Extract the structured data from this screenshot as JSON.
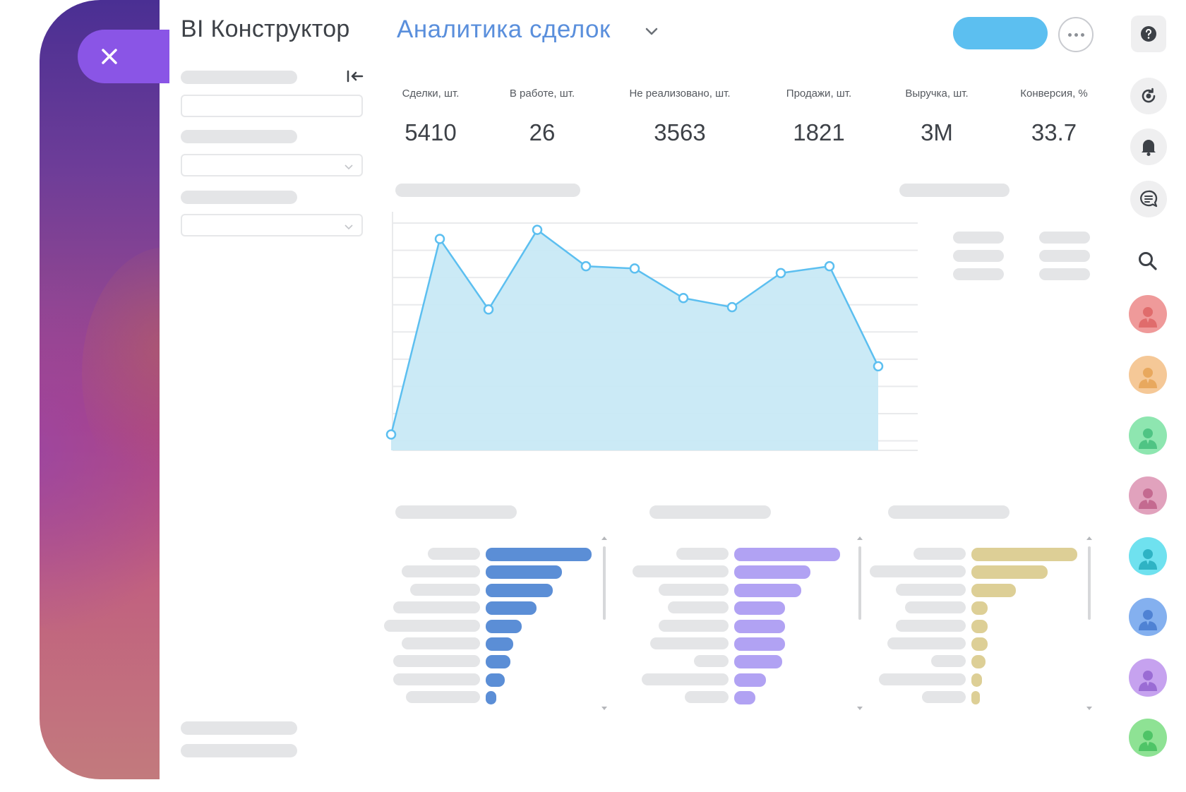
{
  "header": {
    "app_title": "BI Конструктор",
    "report_title": "Аналитика сделок"
  },
  "colors": {
    "accent_blue": "#5cbff0",
    "title_blue": "#5a8fdc",
    "close_purple": "#8a55e6",
    "chart_fill": "#c8e9f6",
    "chart_line": "#5cbff0",
    "funnel_blue": "#5b8ed6",
    "funnel_purple": "#b1a2f3",
    "funnel_gold": "#ddcf96"
  },
  "kpis": [
    {
      "label": "Сделки, шт.",
      "value": "5410"
    },
    {
      "label": "В работе, шт.",
      "value": "26"
    },
    {
      "label": "Не реализовано, шт.",
      "value": "3563"
    },
    {
      "label": "Продажи, шт.",
      "value": "1821"
    },
    {
      "label": "Выручка, шт.",
      "value": "3M"
    },
    {
      "label": "Конверсия, %",
      "value": "33.7"
    }
  ],
  "chart_data": {
    "type": "area",
    "x": [
      1,
      2,
      3,
      4,
      5,
      6,
      7,
      8,
      9,
      10,
      11
    ],
    "values": [
      0.07,
      0.93,
      0.62,
      0.97,
      0.81,
      0.8,
      0.67,
      0.63,
      0.78,
      0.81,
      0.37
    ],
    "ylim": [
      0,
      1
    ],
    "grid": true,
    "title": "",
    "xlabel": "",
    "ylabel": ""
  },
  "funnels": [
    {
      "color": "funnel_blue",
      "values": [
        1.0,
        0.72,
        0.63,
        0.48,
        0.34,
        0.26,
        0.23,
        0.18,
        0.1
      ],
      "labels": [
        0.6,
        0.9,
        0.8,
        1.0,
        1.1,
        0.9,
        1.0,
        1.0,
        0.85
      ]
    },
    {
      "color": "funnel_purple",
      "values": [
        1.0,
        0.72,
        0.63,
        0.48,
        0.48,
        0.48,
        0.45,
        0.3,
        0.2
      ],
      "labels": [
        0.6,
        1.1,
        0.8,
        0.7,
        0.8,
        0.9,
        0.4,
        1.0,
        0.5
      ]
    },
    {
      "color": "funnel_gold",
      "values": [
        1.0,
        0.72,
        0.42,
        0.15,
        0.15,
        0.15,
        0.13,
        0.1,
        0.05
      ],
      "labels": [
        0.6,
        1.1,
        0.8,
        0.7,
        0.8,
        0.9,
        0.4,
        1.0,
        0.5
      ]
    }
  ],
  "rail": {
    "icons": [
      "help-icon",
      "refresh-icon",
      "bell-icon",
      "chat-icon",
      "search-icon"
    ],
    "avatars": [
      "#ef9a9a",
      "#f5c897",
      "#8ee6b0",
      "#e1a2bd",
      "#6fe1ef",
      "#84b0ef",
      "#c6a2ef",
      "#8ee294"
    ],
    "avatar_figures": [
      "#e06c6c",
      "#e8a85e",
      "#4fc484",
      "#c46a90",
      "#2fb3c4",
      "#4f82d4",
      "#9a6cd4",
      "#4fc467"
    ]
  }
}
